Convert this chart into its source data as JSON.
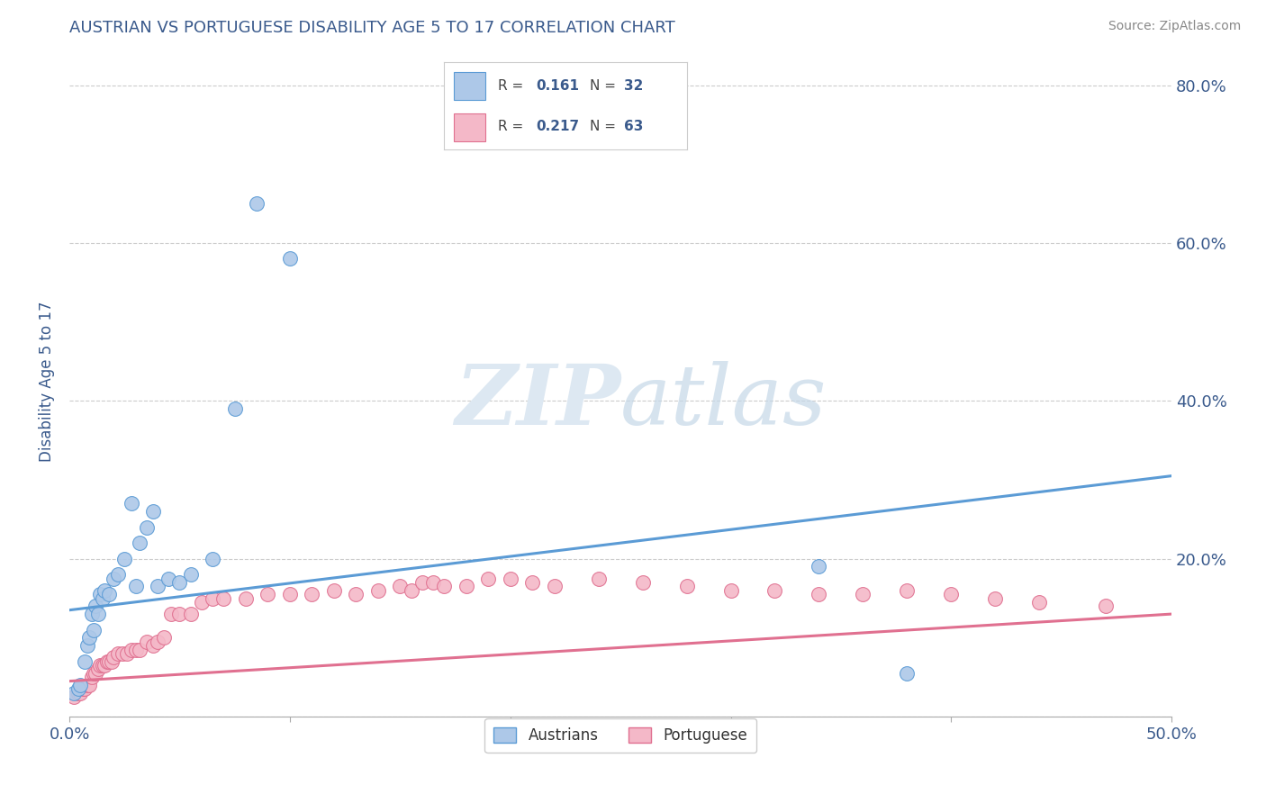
{
  "title": "AUSTRIAN VS PORTUGUESE DISABILITY AGE 5 TO 17 CORRELATION CHART",
  "source_text": "Source: ZipAtlas.com",
  "ylabel": "Disability Age 5 to 17",
  "xlim": [
    0.0,
    0.5
  ],
  "ylim": [
    0.0,
    0.85
  ],
  "x_ticks": [
    0.0,
    0.1,
    0.2,
    0.3,
    0.4,
    0.5
  ],
  "x_tick_labels": [
    "0.0%",
    "",
    "",
    "",
    "",
    "50.0%"
  ],
  "y_ticks": [
    0.0,
    0.2,
    0.4,
    0.6,
    0.8
  ],
  "y_tick_labels_right": [
    "",
    "20.0%",
    "40.0%",
    "60.0%",
    "80.0%"
  ],
  "austrian_color": "#adc8e8",
  "austrian_color_dark": "#5b9bd5",
  "portuguese_color": "#f4b8c8",
  "portuguese_color_dark": "#e07090",
  "text_color": "#3a5a8c",
  "R_austrian": 0.161,
  "N_austrian": 32,
  "R_portuguese": 0.217,
  "N_portuguese": 63,
  "legend_label_austrians": "Austrians",
  "legend_label_portuguese": "Portuguese",
  "austrians_x": [
    0.002,
    0.004,
    0.005,
    0.007,
    0.008,
    0.009,
    0.01,
    0.011,
    0.012,
    0.013,
    0.014,
    0.015,
    0.016,
    0.018,
    0.02,
    0.022,
    0.025,
    0.028,
    0.03,
    0.032,
    0.035,
    0.038,
    0.04,
    0.045,
    0.05,
    0.055,
    0.065,
    0.075,
    0.085,
    0.1,
    0.34,
    0.38
  ],
  "austrians_y": [
    0.03,
    0.035,
    0.04,
    0.07,
    0.09,
    0.1,
    0.13,
    0.11,
    0.14,
    0.13,
    0.155,
    0.15,
    0.16,
    0.155,
    0.175,
    0.18,
    0.2,
    0.27,
    0.165,
    0.22,
    0.24,
    0.26,
    0.165,
    0.175,
    0.17,
    0.18,
    0.2,
    0.39,
    0.65,
    0.58,
    0.19,
    0.055
  ],
  "portuguese_x": [
    0.002,
    0.004,
    0.005,
    0.006,
    0.007,
    0.008,
    0.009,
    0.01,
    0.011,
    0.012,
    0.013,
    0.014,
    0.015,
    0.016,
    0.017,
    0.018,
    0.019,
    0.02,
    0.022,
    0.024,
    0.026,
    0.028,
    0.03,
    0.032,
    0.035,
    0.038,
    0.04,
    0.043,
    0.046,
    0.05,
    0.055,
    0.06,
    0.065,
    0.07,
    0.08,
    0.09,
    0.1,
    0.11,
    0.12,
    0.13,
    0.14,
    0.15,
    0.155,
    0.16,
    0.165,
    0.17,
    0.18,
    0.19,
    0.2,
    0.21,
    0.22,
    0.24,
    0.26,
    0.28,
    0.3,
    0.32,
    0.34,
    0.36,
    0.38,
    0.4,
    0.42,
    0.44,
    0.47
  ],
  "portuguese_y": [
    0.025,
    0.03,
    0.03,
    0.035,
    0.035,
    0.04,
    0.04,
    0.05,
    0.055,
    0.055,
    0.06,
    0.065,
    0.065,
    0.065,
    0.07,
    0.07,
    0.07,
    0.075,
    0.08,
    0.08,
    0.08,
    0.085,
    0.085,
    0.085,
    0.095,
    0.09,
    0.095,
    0.1,
    0.13,
    0.13,
    0.13,
    0.145,
    0.15,
    0.15,
    0.15,
    0.155,
    0.155,
    0.155,
    0.16,
    0.155,
    0.16,
    0.165,
    0.16,
    0.17,
    0.17,
    0.165,
    0.165,
    0.175,
    0.175,
    0.17,
    0.165,
    0.175,
    0.17,
    0.165,
    0.16,
    0.16,
    0.155,
    0.155,
    0.16,
    0.155,
    0.15,
    0.145,
    0.14
  ],
  "blue_line_start": 0.135,
  "blue_line_end": 0.305,
  "pink_line_start": 0.045,
  "pink_line_end": 0.13
}
